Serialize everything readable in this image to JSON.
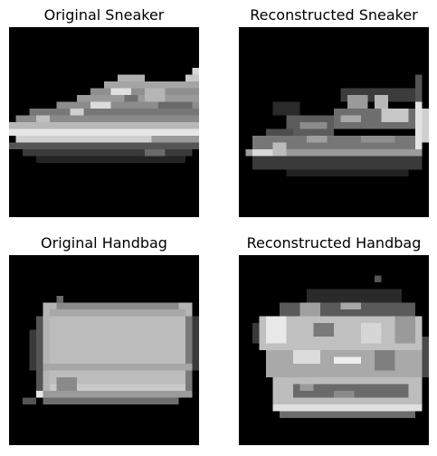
{
  "figure": {
    "panels": [
      {
        "title": "Original Sneaker",
        "content": "original-sneaker"
      },
      {
        "title": "Reconstructed Sneaker",
        "content": "reconstructed-sneaker"
      },
      {
        "title": "Original Handbag",
        "content": "original-handbag"
      },
      {
        "title": "Reconstructed Handbag",
        "content": "reconstructed-handbag"
      }
    ]
  }
}
